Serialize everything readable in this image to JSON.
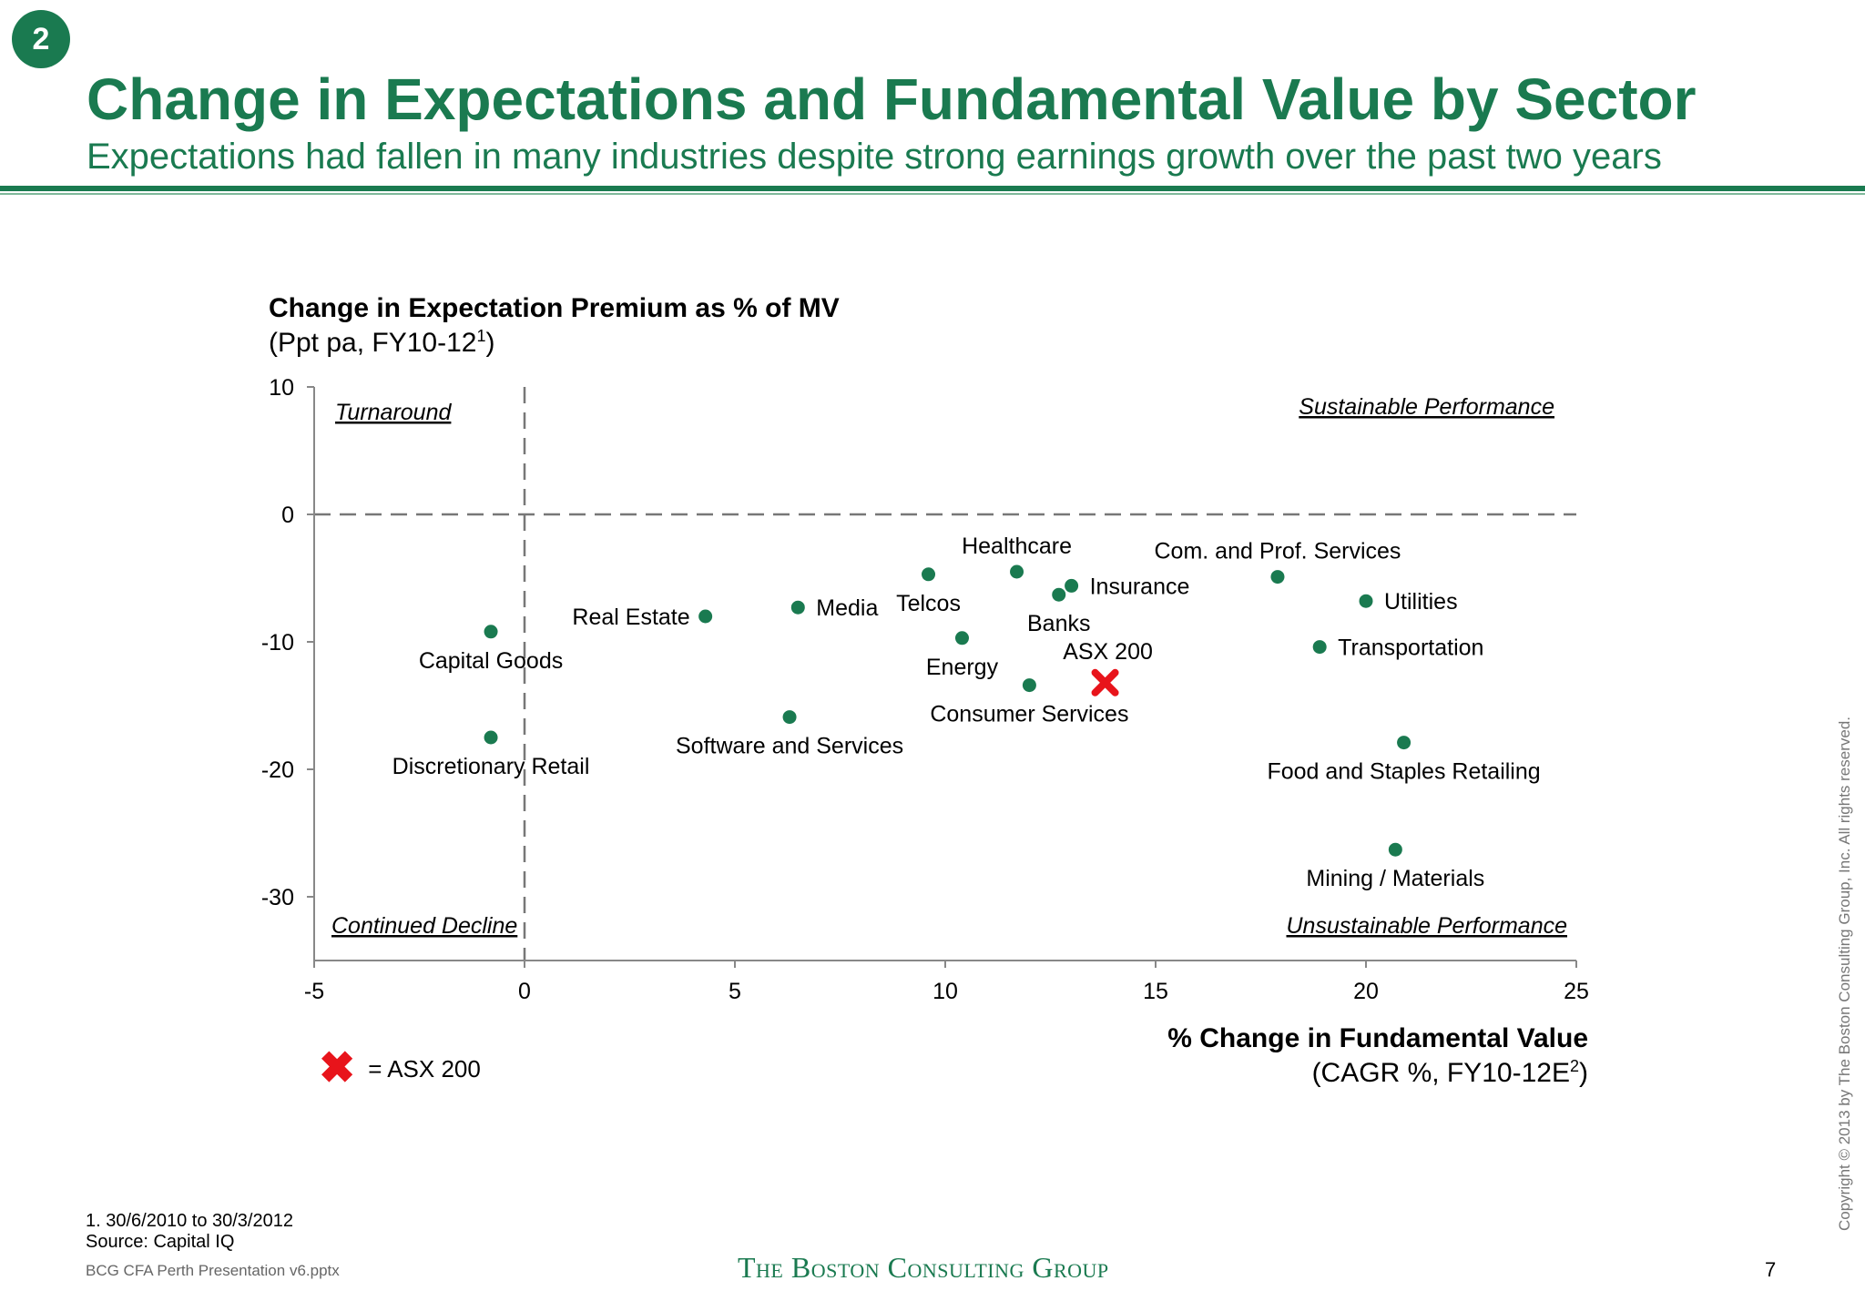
{
  "badge": "2",
  "header": {
    "title": "Change in Expectations and Fundamental Value by Sector",
    "subtitle": "Expectations had fallen in many industries despite strong earnings growth over the past two years"
  },
  "colors": {
    "brand": "#1a7a50",
    "point": "#1a7a50",
    "asx_marker": "#e8141b",
    "axis": "#888888",
    "dashed": "#777777"
  },
  "chart_data": {
    "type": "scatter",
    "ylabel": "Change in Expectation Premium as % of MV",
    "ylabel_sub_pre": "(Ppt pa, FY10-12",
    "ylabel_sub_sup": "1",
    "ylabel_sub_post": ")",
    "xlabel": "% Change in Fundamental Value",
    "xlabel_sub_pre": "(CAGR %, FY10-12E",
    "xlabel_sub_sup": "2",
    "xlabel_sub_post": ")",
    "xlim": [
      -5,
      25
    ],
    "ylim": [
      -35,
      10
    ],
    "xticks": [
      -5,
      0,
      5,
      10,
      15,
      20,
      25
    ],
    "yticks": [
      10,
      0,
      -10,
      -20,
      -30
    ],
    "reference_lines": {
      "x": 0,
      "y": 0,
      "style": "dashed"
    },
    "quadrants": [
      {
        "label": "Turnaround",
        "position": "top-left"
      },
      {
        "label": "Sustainable Performance",
        "position": "top-right"
      },
      {
        "label": "Continued Decline",
        "position": "bottom-left"
      },
      {
        "label": "Unsustainable Performance",
        "position": "bottom-right"
      }
    ],
    "points": [
      {
        "label": "Capital Goods",
        "x": -0.8,
        "y": -9.2,
        "label_pos": "below"
      },
      {
        "label": "Discretionary Retail",
        "x": -0.8,
        "y": -17.5,
        "label_pos": "below"
      },
      {
        "label": "Real Estate",
        "x": 4.3,
        "y": -8.0,
        "label_pos": "left"
      },
      {
        "label": "Media",
        "x": 6.5,
        "y": -7.3,
        "label_pos": "right"
      },
      {
        "label": "Software and Services",
        "x": 6.3,
        "y": -15.9,
        "label_pos": "below"
      },
      {
        "label": "Telcos",
        "x": 9.6,
        "y": -4.7,
        "label_pos": "below"
      },
      {
        "label": "Energy",
        "x": 10.4,
        "y": -9.7,
        "label_pos": "below"
      },
      {
        "label": "Healthcare",
        "x": 11.7,
        "y": -4.5,
        "label_pos": "above"
      },
      {
        "label": "Banks",
        "x": 12.7,
        "y": -6.3,
        "label_pos": "below"
      },
      {
        "label": "Insurance",
        "x": 13.0,
        "y": -5.6,
        "label_pos": "right"
      },
      {
        "label": "Consumer Services",
        "x": 12.0,
        "y": -13.4,
        "label_pos": "below"
      },
      {
        "label": "Com. and Prof. Services",
        "x": 17.9,
        "y": -4.9,
        "label_pos": "above"
      },
      {
        "label": "Utilities",
        "x": 20.0,
        "y": -6.8,
        "label_pos": "right"
      },
      {
        "label": "Transportation",
        "x": 18.9,
        "y": -10.4,
        "label_pos": "right"
      },
      {
        "label": "Food and Staples Retailing",
        "x": 20.9,
        "y": -17.9,
        "label_pos": "below"
      },
      {
        "label": "Mining / Materials",
        "x": 20.7,
        "y": -26.3,
        "label_pos": "below"
      }
    ],
    "benchmark": {
      "label": "ASX 200",
      "x": 13.8,
      "y": -13.2,
      "marker": "x",
      "label_pos": "above"
    },
    "legend": {
      "marker": "✖",
      "text": "= ASX 200",
      "position": "bottom-left"
    }
  },
  "footnotes": {
    "note1": "1. 30/6/2010 to 30/3/2012",
    "source": "Source: Capital IQ",
    "filename": "BCG CFA Perth Presentation v6.pptx"
  },
  "logo": "The Boston Consulting Group",
  "page_number": "7",
  "copyright": "Copyright © 2013 by The Boston Consulting Group, Inc. All rights reserved."
}
